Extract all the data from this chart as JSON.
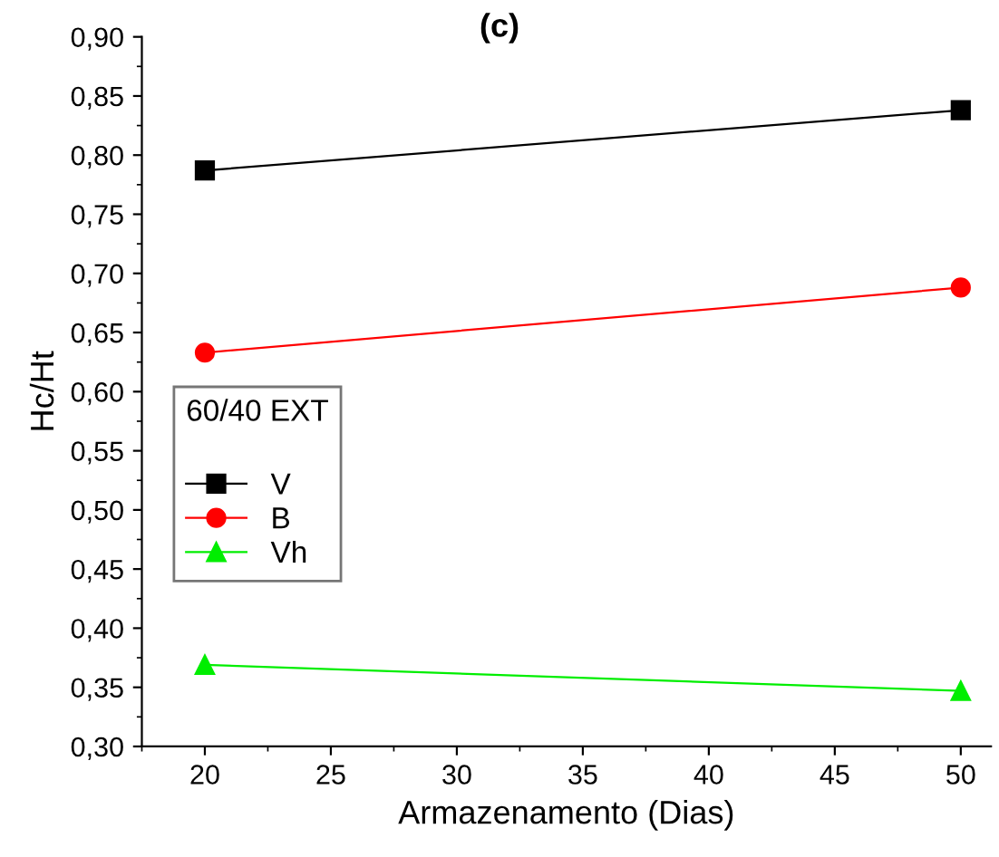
{
  "chart_data": {
    "type": "line",
    "title": "(c)",
    "xlabel": "Armazenamento (Dias)",
    "ylabel": "Hc/Ht",
    "legend_title": "60/40 EXT",
    "legend": "left",
    "x": [
      20,
      50
    ],
    "series": [
      {
        "name": "V",
        "color": "#000000",
        "values": [
          0.787,
          0.838
        ],
        "marker": "square"
      },
      {
        "name": "B",
        "color": "#ff0000",
        "values": [
          0.633,
          0.688
        ],
        "marker": "circle"
      },
      {
        "name": "Vh",
        "color": "#00ee00",
        "values": [
          0.369,
          0.347
        ],
        "marker": "triangle"
      }
    ],
    "xlim": [
      17.5,
      51.2
    ],
    "xticks": [
      20,
      25,
      30,
      35,
      40,
      45,
      50
    ],
    "ylim": [
      0.3,
      0.9
    ],
    "yticks": [
      {
        "value": 0.3,
        "label": "0,30"
      },
      {
        "value": 0.35,
        "label": "0,35"
      },
      {
        "value": 0.4,
        "label": "0,40"
      },
      {
        "value": 0.45,
        "label": "0,45"
      },
      {
        "value": 0.5,
        "label": "0,50"
      },
      {
        "value": 0.55,
        "label": "0,55"
      },
      {
        "value": 0.6,
        "label": "0,60"
      },
      {
        "value": 0.65,
        "label": "0,65"
      },
      {
        "value": 0.7,
        "label": "0,70"
      },
      {
        "value": 0.75,
        "label": "0,75"
      },
      {
        "value": 0.8,
        "label": "0,80"
      },
      {
        "value": 0.85,
        "label": "0,85"
      },
      {
        "value": 0.9,
        "label": "0,90"
      }
    ],
    "grid": false
  }
}
